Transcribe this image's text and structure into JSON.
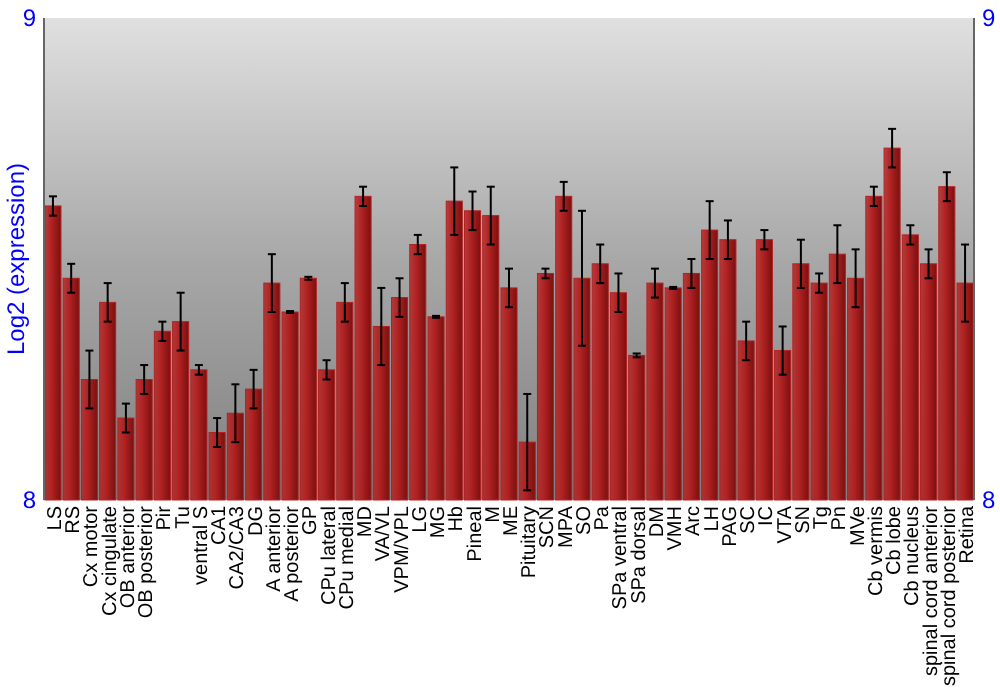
{
  "chart_data": {
    "type": "bar",
    "ylabel": "Log2 (expression)",
    "categories": [
      "LS",
      "RS",
      "Cx motor",
      "Cx cingulate",
      "OB anterior",
      "OB posterior",
      "Pir",
      "Tu",
      "ventral S",
      "CA1",
      "CA2/CA3",
      "DG",
      "A anterior",
      "A posterior",
      "GP",
      "CPu lateral",
      "CPu medial",
      "MD",
      "VA/VL",
      "VPM/VPL",
      "LG",
      "MG",
      "Hb",
      "Pineal",
      "M",
      "ME",
      "Pituitary",
      "SCN",
      "MPA",
      "SO",
      "Pa",
      "SPa ventral",
      "SPa dorsal",
      "DM",
      "VMH",
      "Arc",
      "LH",
      "PAG",
      "SC",
      "IC",
      "VTA",
      "SN",
      "Tg",
      "Pn",
      "MVe",
      "Cb vermis",
      "Cb lobe",
      "Cb nucleus",
      "spinal cord anterior",
      "spinal cord posterior",
      "Retina"
    ],
    "values": [
      8.61,
      8.46,
      8.25,
      8.41,
      8.17,
      8.25,
      8.35,
      8.37,
      8.27,
      8.14,
      8.18,
      8.23,
      8.45,
      8.39,
      8.46,
      8.27,
      8.41,
      8.63,
      8.36,
      8.42,
      8.53,
      8.38,
      8.62,
      8.6,
      8.59,
      8.44,
      8.12,
      8.47,
      8.63,
      8.46,
      8.49,
      8.43,
      8.3,
      8.45,
      8.44,
      8.47,
      8.56,
      8.54,
      8.33,
      8.54,
      8.31,
      8.49,
      8.45,
      8.51,
      8.46,
      8.63,
      8.73,
      8.55,
      8.49,
      8.65,
      8.45
    ],
    "errors": [
      0.02,
      0.03,
      0.06,
      0.04,
      0.03,
      0.03,
      0.02,
      0.06,
      0.01,
      0.03,
      0.06,
      0.04,
      0.06,
      0.002,
      0.003,
      0.02,
      0.04,
      0.02,
      0.08,
      0.04,
      0.02,
      0.002,
      0.07,
      0.04,
      0.06,
      0.04,
      0.1,
      0.01,
      0.03,
      0.14,
      0.04,
      0.04,
      0.004,
      0.03,
      0.002,
      0.03,
      0.06,
      0.04,
      0.04,
      0.02,
      0.05,
      0.05,
      0.02,
      0.06,
      0.06,
      0.02,
      0.04,
      0.02,
      0.03,
      0.03,
      0.08
    ],
    "color": "#b22222",
    "ylim": [
      8,
      9
    ],
    "yticks": [
      8,
      9
    ],
    "y2lim": [
      8,
      9
    ],
    "y2ticks": [
      8,
      9
    ],
    "grid": false
  }
}
